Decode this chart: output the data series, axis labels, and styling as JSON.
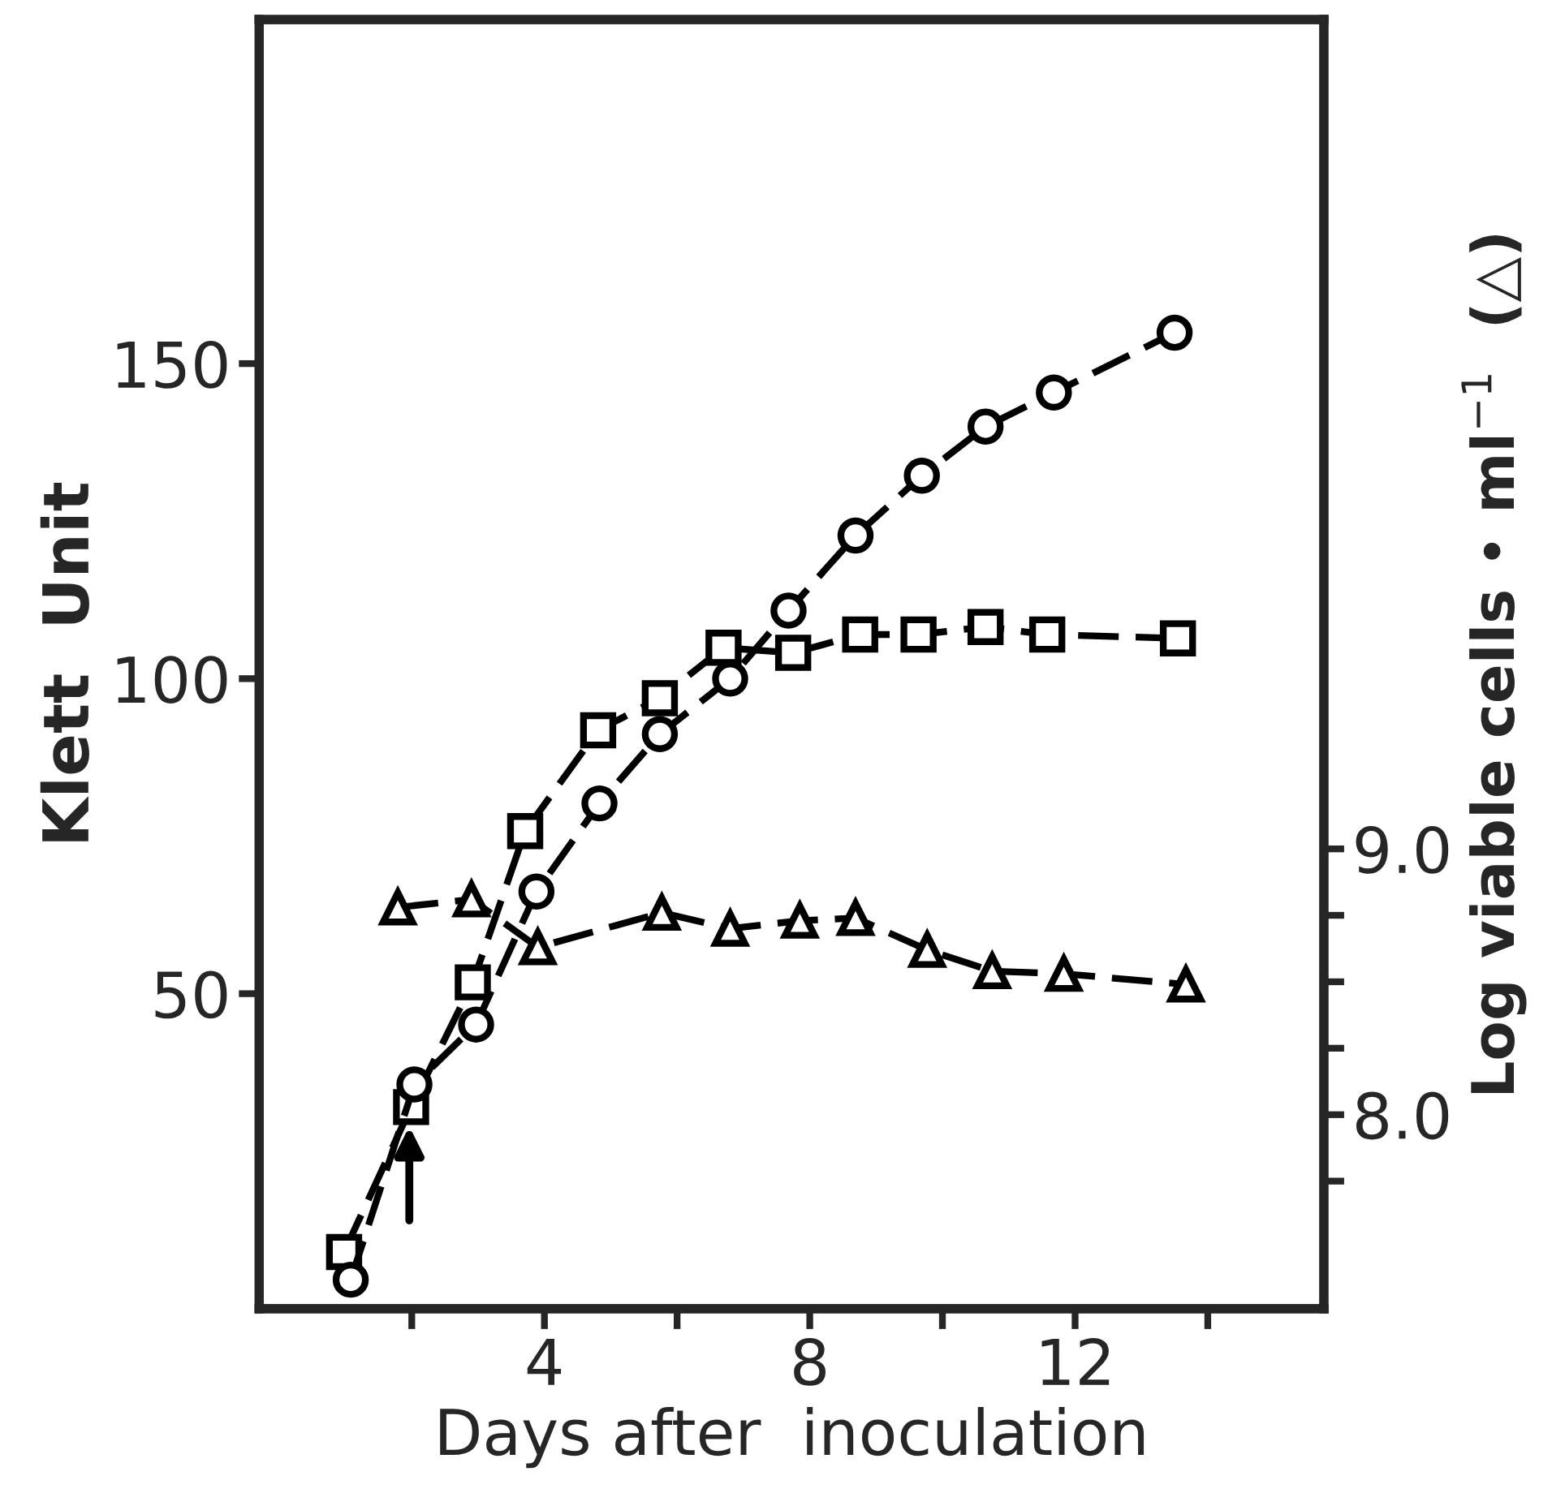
{
  "chart_data": {
    "type": "line",
    "xlabel": "Days after  inoculation",
    "ylabel": "Klett  Unit",
    "y2label": "Log viable cells • ml$^{−1}$  (△)",
    "series": [
      {
        "marker": "circle",
        "line_style": "dashed",
        "color": "#000000",
        "x": [
          1.08,
          2.04,
          2.97,
          3.88,
          4.83,
          5.74,
          6.8,
          7.68,
          8.69,
          9.69,
          10.65,
          11.68,
          13.5
        ],
        "values": [
          4.6,
          35.6,
          45.1,
          66.2,
          80.2,
          91.2,
          100,
          110.8,
          122.7,
          132.2,
          140,
          145.4,
          154.9
        ]
      },
      {
        "marker": "square",
        "line_style": "dashed",
        "color": "#000000",
        "x": [
          0.98,
          1.99,
          2.92,
          3.71,
          4.81,
          5.74,
          6.7,
          7.75,
          8.76,
          9.64,
          10.65,
          11.58,
          13.55
        ],
        "values": [
          9.0,
          32.0,
          51.8,
          75.8,
          91.8,
          96.9,
          104.9,
          104.1,
          107.0,
          107.0,
          108.2,
          107.0,
          106.4
        ]
      },
      {
        "marker": "triangle",
        "line_style": "dashed",
        "color": "#000000",
        "axis": "y2",
        "x": [
          1.79,
          2.9,
          3.9,
          5.77,
          6.8,
          7.85,
          8.69,
          9.77,
          10.75,
          11.83,
          13.67
        ],
        "values": [
          8.78,
          8.81,
          8.63,
          8.76,
          8.7,
          8.73,
          8.74,
          8.62,
          8.54,
          8.53,
          8.49
        ]
      }
    ],
    "xlim": [
      -0.3,
      15.75
    ],
    "xticks": [
      {
        "value": 2,
        "label": null
      },
      4,
      {
        "value": 6,
        "label": null
      },
      8,
      {
        "value": 10,
        "label": null
      },
      12,
      {
        "value": 14,
        "label": null
      }
    ],
    "ylim": [
      0,
      204.6
    ],
    "yticks": [
      50,
      100,
      150
    ],
    "y2lim": [
      7.27,
      12.12
    ],
    "y2ticks": [
      {
        "value": 7.75,
        "label": null
      },
      {
        "value": 8.0,
        "label": "8.0"
      },
      {
        "value": 8.25,
        "label": null
      },
      {
        "value": 8.5,
        "label": null
      },
      {
        "value": 8.75,
        "label": null
      },
      {
        "value": 9.0,
        "label": "9.0"
      }
    ],
    "grid": false
  }
}
